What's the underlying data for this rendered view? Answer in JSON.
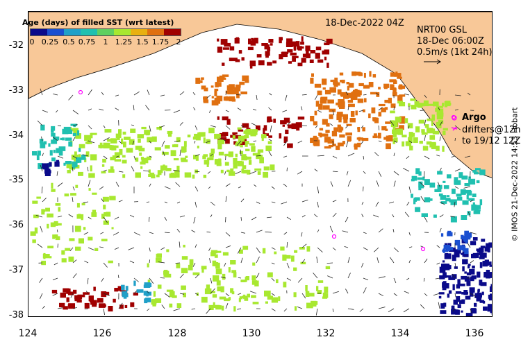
{
  "map": {
    "title": "Age (days) of filled SST (wrt latest)",
    "timestamp": "18-Dec-2022 04Z",
    "colorbar_ticks": [
      "0",
      "0.25",
      "0.5",
      "0.75",
      "1",
      "1.25",
      "1.5",
      "1.75",
      "2"
    ],
    "colorbar_colors": [
      "#0a0a8a",
      "#1a4fd0",
      "#20a0c8",
      "#20c0b0",
      "#60d060",
      "#a8e830",
      "#e8b010",
      "#e07010",
      "#a00000"
    ],
    "velocity_info": {
      "line1": "NRT00 GSL",
      "line2": "18-Dec 06:00Z",
      "line3": "0.5m/s (1kt 24h)"
    },
    "argo_label": "Argo",
    "drifters_line1": "drifters@12h",
    "drifters_line2": "to 19/12 12Z",
    "credit": "© IMOS 21-Dec-2022 14:53 Hobart",
    "y_axis_labels": [
      "-32",
      "-33",
      "-34",
      "-35",
      "-36",
      "-37",
      "-38"
    ],
    "x_axis_labels": [
      "124",
      "126",
      "128",
      "130",
      "132",
      "134",
      "136"
    ],
    "land_color": "#f8c898"
  }
}
